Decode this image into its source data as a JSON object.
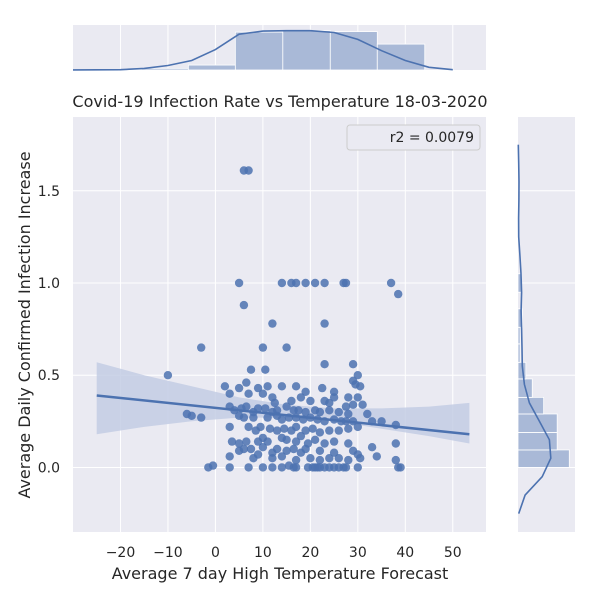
{
  "chart_data": {
    "type": "scatter",
    "title": "Covid-19 Infection Rate vs Temperature 18-03-2020",
    "xlabel": "Average 7 day High Temperature Forecast",
    "ylabel": "Average Daily Confirmed Infection Increase",
    "xlim": [
      -30,
      57
    ],
    "ylim": [
      -0.35,
      1.9
    ],
    "xticks": [
      -20,
      -10,
      0,
      10,
      20,
      30,
      40,
      50
    ],
    "yticks": [
      0.0,
      0.5,
      1.0,
      1.5
    ],
    "xtick_labels": [
      "−20",
      "−10",
      "0",
      "10",
      "20",
      "30",
      "40",
      "50"
    ],
    "ytick_labels": [
      "0.0",
      "0.5",
      "1.0",
      "1.5"
    ],
    "grid": true,
    "legend_position": "top-right",
    "legend_text": "r2 = 0.0079",
    "points": [
      [
        6.0,
        1.61
      ],
      [
        7.0,
        1.61
      ],
      [
        5.0,
        1.0
      ],
      [
        14.0,
        1.0
      ],
      [
        16.0,
        1.0
      ],
      [
        17.0,
        1.0
      ],
      [
        19.0,
        1.0
      ],
      [
        21.0,
        1.0
      ],
      [
        23.0,
        1.0
      ],
      [
        27.0,
        1.0
      ],
      [
        27.5,
        1.0
      ],
      [
        37.0,
        1.0
      ],
      [
        38.5,
        0.94
      ],
      [
        6.0,
        0.88
      ],
      [
        12.0,
        0.78
      ],
      [
        23.0,
        0.78
      ],
      [
        -3.0,
        0.65
      ],
      [
        10.0,
        0.65
      ],
      [
        15.0,
        0.65
      ],
      [
        23.0,
        0.56
      ],
      [
        29.0,
        0.56
      ],
      [
        -10.0,
        0.5
      ],
      [
        7.5,
        0.53
      ],
      [
        10.5,
        0.53
      ],
      [
        30.0,
        0.5
      ],
      [
        29.0,
        0.47
      ],
      [
        29.5,
        0.45
      ],
      [
        30.5,
        0.44
      ],
      [
        2.0,
        0.44
      ],
      [
        5.0,
        0.43
      ],
      [
        6.5,
        0.46
      ],
      [
        9.0,
        0.43
      ],
      [
        11.0,
        0.44
      ],
      [
        14.0,
        0.44
      ],
      [
        17.0,
        0.44
      ],
      [
        19.0,
        0.41
      ],
      [
        22.5,
        0.43
      ],
      [
        25.0,
        0.41
      ],
      [
        28.0,
        0.38
      ],
      [
        30.0,
        0.38
      ],
      [
        3.0,
        0.4
      ],
      [
        7.0,
        0.4
      ],
      [
        10.0,
        0.4
      ],
      [
        12.0,
        0.38
      ],
      [
        12.5,
        0.35
      ],
      [
        16.0,
        0.36
      ],
      [
        18.0,
        0.38
      ],
      [
        20.0,
        0.36
      ],
      [
        23.0,
        0.36
      ],
      [
        24.0,
        0.35
      ],
      [
        25.0,
        0.38
      ],
      [
        27.5,
        0.33
      ],
      [
        29.0,
        0.34
      ],
      [
        31.0,
        0.34
      ],
      [
        3.0,
        0.33
      ],
      [
        4.0,
        0.31
      ],
      [
        5.5,
        0.32
      ],
      [
        6.5,
        0.33
      ],
      [
        8.0,
        0.3
      ],
      [
        9.0,
        0.32
      ],
      [
        10.5,
        0.32
      ],
      [
        12.0,
        0.3
      ],
      [
        13.0,
        0.31
      ],
      [
        15.0,
        0.33
      ],
      [
        16.5,
        0.31
      ],
      [
        17.5,
        0.31
      ],
      [
        19.0,
        0.3
      ],
      [
        21.0,
        0.31
      ],
      [
        22.0,
        0.3
      ],
      [
        24.0,
        0.31
      ],
      [
        26.0,
        0.3
      ],
      [
        28.0,
        0.29
      ],
      [
        32.0,
        0.29
      ],
      [
        -6.0,
        0.29
      ],
      [
        -5.0,
        0.28
      ],
      [
        -3.0,
        0.27
      ],
      [
        5.0,
        0.28
      ],
      [
        6.0,
        0.27
      ],
      [
        8.0,
        0.27
      ],
      [
        11.0,
        0.27
      ],
      [
        13.0,
        0.28
      ],
      [
        14.0,
        0.26
      ],
      [
        15.5,
        0.27
      ],
      [
        17.0,
        0.27
      ],
      [
        18.5,
        0.26
      ],
      [
        20.0,
        0.27
      ],
      [
        21.5,
        0.26
      ],
      [
        23.0,
        0.25
      ],
      [
        25.0,
        0.26
      ],
      [
        26.5,
        0.25
      ],
      [
        27.5,
        0.25
      ],
      [
        29.0,
        0.25
      ],
      [
        33.0,
        0.25
      ],
      [
        35.0,
        0.25
      ],
      [
        38.0,
        0.23
      ],
      [
        3.0,
        0.22
      ],
      [
        7.0,
        0.22
      ],
      [
        8.5,
        0.2
      ],
      [
        9.5,
        0.22
      ],
      [
        11.5,
        0.21
      ],
      [
        13.0,
        0.2
      ],
      [
        14.5,
        0.21
      ],
      [
        16.0,
        0.2
      ],
      [
        17.0,
        0.22
      ],
      [
        19.0,
        0.2
      ],
      [
        20.5,
        0.21
      ],
      [
        22.0,
        0.19
      ],
      [
        24.0,
        0.2
      ],
      [
        26.0,
        0.2
      ],
      [
        28.0,
        0.21
      ],
      [
        30.0,
        0.22
      ],
      [
        3.5,
        0.14
      ],
      [
        5.0,
        0.13
      ],
      [
        6.5,
        0.14
      ],
      [
        9.0,
        0.14
      ],
      [
        10.0,
        0.16
      ],
      [
        11.0,
        0.14
      ],
      [
        14.0,
        0.16
      ],
      [
        15.0,
        0.15
      ],
      [
        17.0,
        0.14
      ],
      [
        18.0,
        0.17
      ],
      [
        19.5,
        0.13
      ],
      [
        21.0,
        0.15
      ],
      [
        23.0,
        0.13
      ],
      [
        25.0,
        0.14
      ],
      [
        28.0,
        0.13
      ],
      [
        33.0,
        0.11
      ],
      [
        38.0,
        0.13
      ],
      [
        5.0,
        0.09
      ],
      [
        6.0,
        0.1
      ],
      [
        7.5,
        0.1
      ],
      [
        10.0,
        0.11
      ],
      [
        12.0,
        0.08
      ],
      [
        13.0,
        0.1
      ],
      [
        15.0,
        0.09
      ],
      [
        16.5,
        0.1
      ],
      [
        18.0,
        0.08
      ],
      [
        19.0,
        0.1
      ],
      [
        22.0,
        0.09
      ],
      [
        25.0,
        0.08
      ],
      [
        29.0,
        0.09
      ],
      [
        30.0,
        0.07
      ],
      [
        34.0,
        0.06
      ],
      [
        3.0,
        0.06
      ],
      [
        8.0,
        0.05
      ],
      [
        9.0,
        0.07
      ],
      [
        12.0,
        0.05
      ],
      [
        14.0,
        0.06
      ],
      [
        17.0,
        0.04
      ],
      [
        20.0,
        0.05
      ],
      [
        22.0,
        0.04
      ],
      [
        24.0,
        0.05
      ],
      [
        26.0,
        0.05
      ],
      [
        28.0,
        0.04
      ],
      [
        30.5,
        0.05
      ],
      [
        38.0,
        0.04
      ],
      [
        -1.5,
        0.0
      ],
      [
        -0.5,
        0.01
      ],
      [
        3.0,
        0.0
      ],
      [
        7.0,
        0.0
      ],
      [
        10.0,
        0.0
      ],
      [
        12.0,
        0.0
      ],
      [
        14.0,
        0.0
      ],
      [
        15.5,
        0.01
      ],
      [
        16.5,
        0.0
      ],
      [
        17.0,
        0.0
      ],
      [
        19.5,
        0.0
      ],
      [
        20.5,
        0.0
      ],
      [
        21.0,
        0.0
      ],
      [
        21.5,
        0.0
      ],
      [
        22.0,
        0.0
      ],
      [
        23.0,
        0.0
      ],
      [
        24.0,
        0.0
      ],
      [
        25.0,
        0.0
      ],
      [
        26.0,
        0.0
      ],
      [
        27.0,
        0.0
      ],
      [
        27.5,
        0.0
      ],
      [
        30.0,
        0.0
      ],
      [
        38.5,
        0.0
      ],
      [
        39.0,
        0.0
      ]
    ],
    "regression": {
      "x": [
        -25,
        53.5
      ],
      "y": [
        0.39,
        0.18
      ]
    },
    "confidence_band": {
      "x": [
        -25,
        -15,
        -5,
        5,
        15,
        25,
        35,
        45,
        53.5
      ],
      "lower": [
        0.18,
        0.22,
        0.25,
        0.27,
        0.27,
        0.25,
        0.21,
        0.17,
        0.13
      ],
      "upper": [
        0.57,
        0.5,
        0.44,
        0.38,
        0.34,
        0.32,
        0.32,
        0.33,
        0.35
      ]
    },
    "x_histogram": {
      "bin_edges": [
        -25.6,
        -15.6,
        -5.7,
        4.2,
        14.2,
        24.2,
        34.1,
        44.1
      ],
      "density": [
        0.0002,
        0.0015,
        0.0045,
        0.0345,
        0.0358,
        0.035,
        0.0236
      ]
    },
    "x_kde": {
      "x": [
        -30,
        -20,
        -15,
        -10,
        -5,
        0,
        5,
        10,
        15,
        20,
        25,
        30,
        35,
        40,
        45,
        50
      ],
      "y": [
        0.0001,
        0.0003,
        0.0015,
        0.0041,
        0.0087,
        0.0186,
        0.0326,
        0.0354,
        0.0358,
        0.0358,
        0.0342,
        0.0279,
        0.0176,
        0.0087,
        0.0025,
        0.0003
      ]
    },
    "y_histogram": {
      "bin_edges": [
        0.0,
        0.095,
        0.19,
        0.29,
        0.38,
        0.48,
        0.57,
        0.67,
        0.76,
        0.86,
        0.95,
        1.05,
        1.14,
        1.24,
        1.33,
        1.43,
        1.52,
        1.62
      ],
      "density": [
        3.6,
        2.75,
        2.75,
        1.8,
        1.0,
        0.55,
        0.15,
        0.15,
        0.3,
        0.0,
        0.25,
        0.0,
        0.0,
        0.0,
        0.0,
        0.0,
        0.0
      ]
    },
    "y_kde": {
      "y": [
        -0.25,
        -0.15,
        -0.05,
        0.05,
        0.15,
        0.25,
        0.35,
        0.45,
        0.55,
        0.65,
        0.75,
        0.85,
        0.95,
        1.05,
        1.15,
        1.25,
        1.35,
        1.45,
        1.55,
        1.65,
        1.75
      ],
      "x": [
        0.05,
        0.5,
        1.7,
        2.3,
        2.2,
        1.5,
        0.8,
        0.45,
        0.3,
        0.28,
        0.25,
        0.22,
        0.25,
        0.21,
        0.13,
        0.05,
        0.04,
        0.06,
        0.07,
        0.05,
        0.02
      ]
    },
    "colors": {
      "point": "#4c72b0",
      "line": "#4c72b0",
      "band": "#c3cde4",
      "histogram": "#a9b9d7",
      "axes_background": "#eaeaf2",
      "grid": "#ffffff",
      "legend_background": "#eaeaf2",
      "legend_border": "#cccccc"
    }
  }
}
